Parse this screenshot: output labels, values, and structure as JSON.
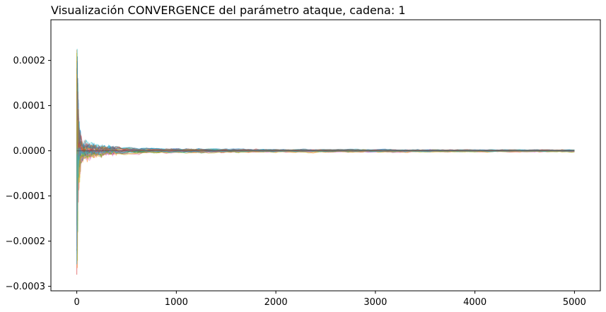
{
  "chart_data": {
    "type": "line",
    "title": "Visualización CONVERGENCE del parámetro ataque, cadena: 1",
    "xlabel": "",
    "ylabel": "",
    "xlim": [
      -260,
      5260
    ],
    "ylim": [
      -0.00031,
      0.00029
    ],
    "x_ticks": [
      0,
      1000,
      2000,
      3000,
      4000,
      5000
    ],
    "x_tick_labels": [
      "0",
      "1000",
      "2000",
      "3000",
      "4000",
      "5000"
    ],
    "y_ticks": [
      0.0002,
      0.0001,
      0.0,
      -0.0001,
      -0.0002,
      -0.0003
    ],
    "y_tick_labels": [
      "0.0002",
      "0.0001",
      "0.0000",
      "−0.0001",
      "−0.0002",
      "−0.0003"
    ],
    "grid": false,
    "legend": "none",
    "series_description": "Many overlapping running-mean traces of parameter ataque converging to 0",
    "series_colors": [
      "#1f77b4",
      "#ff7f0e",
      "#2ca02c",
      "#d62728",
      "#9467bd",
      "#8c564b",
      "#e377c2",
      "#7f7f7f",
      "#bcbd22",
      "#17becf"
    ],
    "series_count": 30,
    "x_max": 5000,
    "initial_range": [
      -0.000285,
      0.000265
    ],
    "envelope_points": [
      {
        "x": 0,
        "upper": 0.000265,
        "lower": -0.000285
      },
      {
        "x": 20,
        "upper": 8e-05,
        "lower": -8e-05
      },
      {
        "x": 50,
        "upper": 3e-05,
        "lower": -3e-05
      },
      {
        "x": 100,
        "upper": 2.2e-05,
        "lower": -2.5e-05
      },
      {
        "x": 200,
        "upper": 1.4e-05,
        "lower": -1.5e-05
      },
      {
        "x": 500,
        "upper": 8e-06,
        "lower": -8e-06
      },
      {
        "x": 1000,
        "upper": 6e-06,
        "lower": -6e-06
      },
      {
        "x": 2000,
        "upper": 4e-06,
        "lower": -4e-06
      },
      {
        "x": 5000,
        "upper": 3e-06,
        "lower": -3e-06
      }
    ]
  }
}
